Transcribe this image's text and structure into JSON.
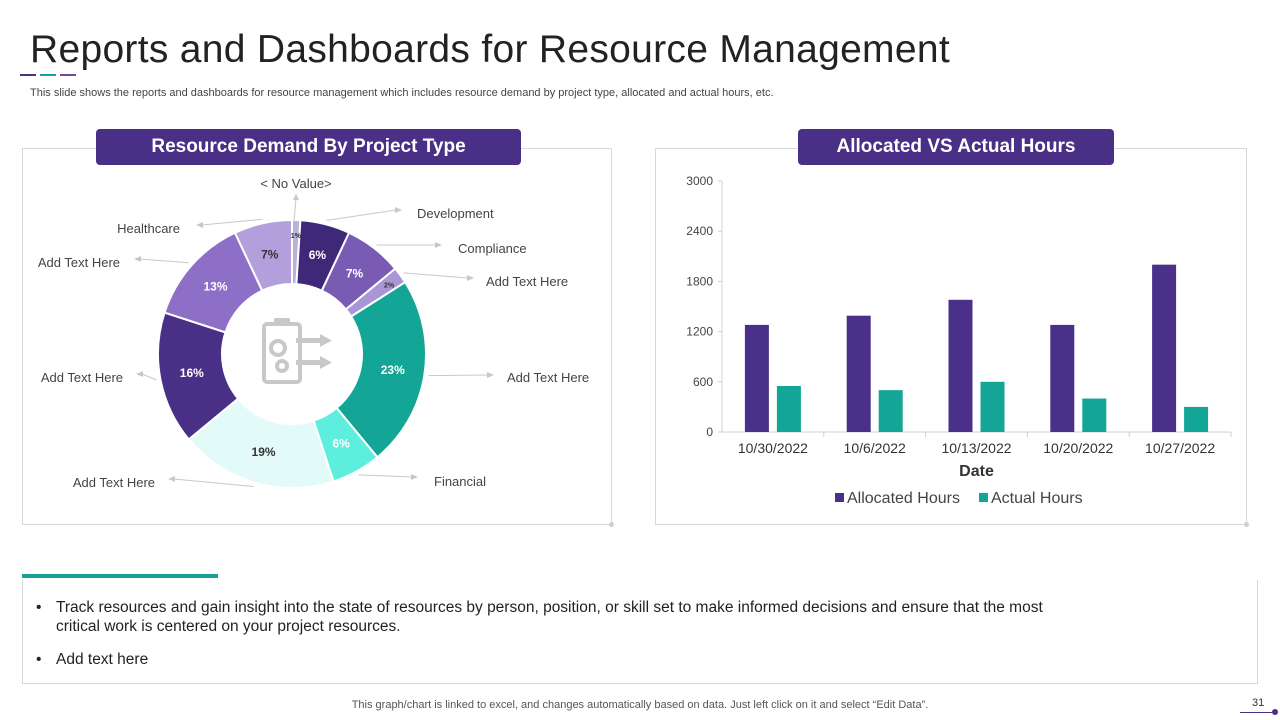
{
  "slide": {
    "title": "Reports and Dashboards for Resource Management",
    "subtitle": "This slide shows the reports and dashboards for resource management which includes resource demand by project type,  allocated and actual hours, etc.",
    "page_number": "31",
    "footer_note": "This graph/chart is linked to excel, and changes automatically based on data. Just left click on it and select “Edit Data”.",
    "accent_colors": [
      "#4a2f87",
      "#13a595",
      "#6b4aa0"
    ]
  },
  "left_panel": {
    "header": "Resource Demand By Project Type",
    "center_icon": "clipboard-gears-icon"
  },
  "right_panel": {
    "header": "Allocated VS Actual Hours"
  },
  "chart_data": [
    {
      "type": "pie",
      "style": "donut",
      "slices": [
        {
          "label": "< No Value>",
          "value": 1,
          "display": "1%",
          "color": "#b9b1d6"
        },
        {
          "label": "Development",
          "value": 6,
          "display": "6%",
          "color": "#3f2877"
        },
        {
          "label": "Compliance",
          "value": 7,
          "display": "7%",
          "color": "#7a5bb4"
        },
        {
          "label": "Add Text Here",
          "value": 2,
          "display": "2%",
          "color": "#a996d6"
        },
        {
          "label": "Add Text Here",
          "value": 23,
          "display": "23%",
          "color": "#13a595"
        },
        {
          "label": "Financial",
          "value": 6,
          "display": "6%",
          "color": "#5eeedd"
        },
        {
          "label": "Add Text Here",
          "value": 19,
          "display": "19%",
          "color": "#e3fbf8"
        },
        {
          "label": "Add Text Here",
          "value": 16,
          "display": "16%",
          "color": "#4a2f87"
        },
        {
          "label": "Add Text Here",
          "value": 13,
          "display": "13%",
          "color": "#8e6fc8"
        },
        {
          "label": "Healthcare",
          "value": 7,
          "display": "7%",
          "color": "#b39fdc"
        }
      ]
    },
    {
      "type": "bar",
      "categories": [
        "10/30/2022",
        "10/6/2022",
        "10/13/2022",
        "10/20/2022",
        "10/27/2022"
      ],
      "series": [
        {
          "name": "Allocated Hours",
          "values": [
            1280,
            1390,
            1580,
            1280,
            2000
          ],
          "color": "#4a3088"
        },
        {
          "name": "Actual Hours",
          "values": [
            550,
            500,
            600,
            400,
            300
          ],
          "color": "#13a595"
        }
      ],
      "xlabel": "Date",
      "ylabel": "",
      "ylim": [
        0,
        3000
      ],
      "yticks": [
        0,
        600,
        1200,
        1800,
        2400,
        3000
      ],
      "legend": "bottom",
      "grid": false
    }
  ],
  "bullets": [
    "Track resources and gain insight into the state of resources by person, position, or skill set to make informed decisions and ensure that the most critical work is centered on your project resources.",
    "Add text here"
  ],
  "bullet_symbol": "•"
}
